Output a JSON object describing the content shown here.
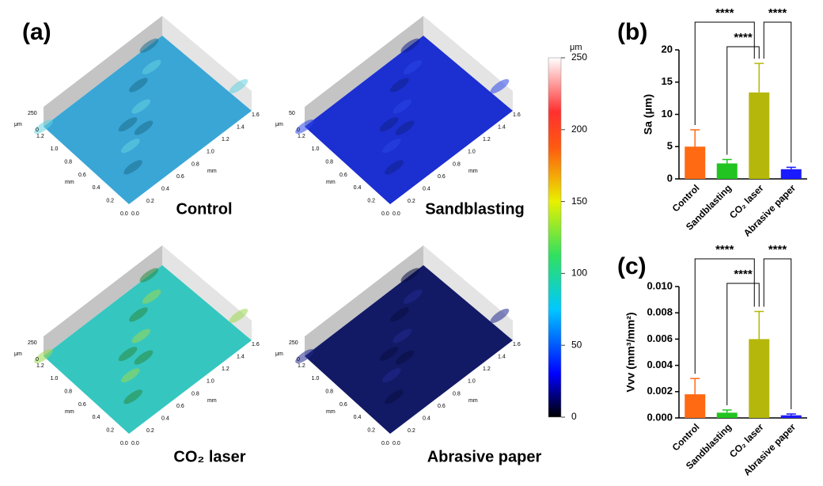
{
  "panel_labels": [
    "(a)",
    "(b)",
    "(c)"
  ],
  "surfaces": [
    {
      "label": "Control",
      "z_max": "250"
    },
    {
      "label": "Sandblasting",
      "z_max": "50"
    },
    {
      "label": "CO₂ laser",
      "z_max": "250"
    },
    {
      "label": "Abrasive paper",
      "z_max": "250"
    }
  ],
  "surface_axes": {
    "z_unit": "μm",
    "z_min": "0",
    "unit": "mm",
    "y_ticks": [
      "1.2",
      "1.0",
      "0.8",
      "0.6",
      "0.4",
      "0.2",
      "0.0"
    ],
    "x_ticks": [
      "0.0",
      "0.2",
      "0.4",
      "0.6",
      "0.8",
      "1.0",
      "1.2",
      "1.4",
      "1.6"
    ]
  },
  "colorbar": {
    "unit": "μm",
    "lim": [
      0,
      250
    ],
    "ticks": [
      0,
      50,
      100,
      150,
      200,
      250
    ]
  },
  "chart_data": [
    {
      "type": "bar",
      "y_label": "Sa (μm)",
      "categories": [
        "Control",
        "Sandblasting",
        "CO₂ laser",
        "Abrasive paper"
      ],
      "values": [
        5.0,
        2.4,
        13.4,
        1.5
      ],
      "errors": [
        2.6,
        0.6,
        4.5,
        0.3
      ],
      "colors": [
        "#ff6a13",
        "#22c422",
        "#b5b80a",
        "#1a1aff"
      ],
      "ylim": [
        0,
        20
      ],
      "yticks": [
        0,
        5,
        10,
        15,
        20
      ],
      "annotations": [
        "****",
        "****",
        "****"
      ]
    },
    {
      "type": "bar",
      "y_label": "Vvv (mm³/mm²)",
      "categories": [
        "Control",
        "Sandblasting",
        "CO₂ laser",
        "Abrasive paper"
      ],
      "values": [
        0.0018,
        0.0004,
        0.006,
        0.0002
      ],
      "errors": [
        0.0012,
        0.0002,
        0.0021,
        0.0001
      ],
      "colors": [
        "#ff6a13",
        "#22c422",
        "#b5b80a",
        "#1a1aff"
      ],
      "ylim": [
        0,
        0.01
      ],
      "yticks": [
        {
          "value": 0,
          "label": "0.000"
        },
        {
          "value": 0.002,
          "label": "0.002"
        },
        {
          "value": 0.004,
          "label": "0.004"
        },
        {
          "value": 0.006,
          "label": "0.006"
        },
        {
          "value": 0.008,
          "label": "0.008"
        },
        {
          "value": 0.01,
          "label": "0.010"
        }
      ],
      "annotations": [
        "****",
        "****",
        "****"
      ]
    }
  ]
}
